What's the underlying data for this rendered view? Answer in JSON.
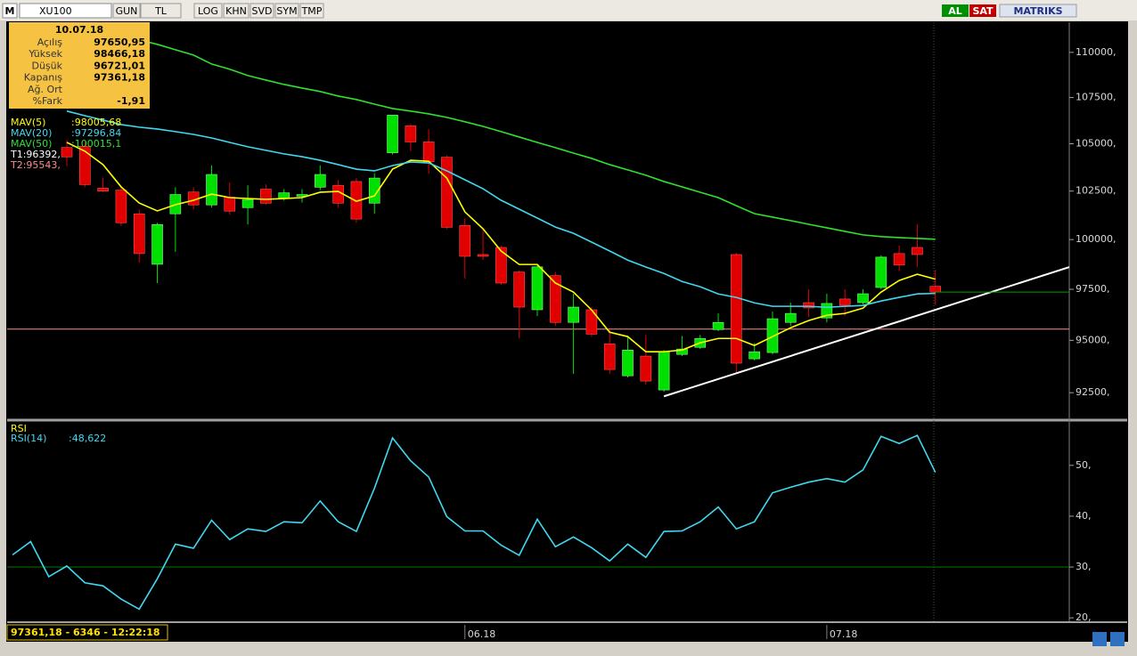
{
  "toolbar": {
    "logo": "M",
    "symbol": "XU100",
    "buttons": [
      "GUN",
      "TL",
      "LOG",
      "KHN",
      "SVD",
      "SYM",
      "TMP"
    ],
    "buy": "AL",
    "sell": "SAT",
    "brand": "MATRIKS"
  },
  "info": {
    "date": "10.07.18",
    "rows": [
      [
        "Açılış",
        "97650,95"
      ],
      [
        "Yüksek",
        "98466,18"
      ],
      [
        "Düşük",
        "96721,01"
      ],
      [
        "Kapanış",
        "97361,18"
      ],
      [
        "Ağ. Ort"
      ],
      [
        "%Fark",
        "-1,91"
      ]
    ]
  },
  "status": "97361,18 - 6346 - 12:22:18",
  "chart_data": [
    {
      "type": "candlestick",
      "log_scale": true,
      "categories": [
        null,
        null,
        null,
        null,
        null,
        null,
        null,
        null,
        null,
        null,
        null,
        null,
        null,
        null,
        null,
        null,
        null,
        null,
        null,
        null,
        null,
        null,
        null,
        null,
        null,
        "06.18",
        null,
        null,
        null,
        null,
        null,
        null,
        null,
        null,
        null,
        null,
        null,
        null,
        null,
        null,
        null,
        null,
        null,
        null,
        null,
        "07.18",
        null,
        null,
        null,
        null,
        null,
        null
      ],
      "open": [
        null,
        null,
        null,
        104800,
        104860,
        102650,
        102550,
        101320,
        98750,
        101320,
        102450,
        101780,
        102180,
        101640,
        102600,
        102140,
        102230,
        102700,
        102800,
        103000,
        101870,
        104520,
        105960,
        105100,
        104280,
        100720,
        99240,
        99600,
        98360,
        96490,
        98180,
        95870,
        96490,
        94830,
        93300,
        94240,
        92630,
        94320,
        94660,
        95520,
        99240,
        94110,
        94410,
        95870,
        96840,
        96090,
        97020,
        96840,
        97590,
        99290,
        99600,
        97650.95
      ],
      "high": [
        null,
        null,
        null,
        105200,
        105100,
        103200,
        102700,
        101550,
        100860,
        102700,
        102700,
        103850,
        102950,
        102800,
        102850,
        102600,
        102600,
        103850,
        103080,
        103180,
        103430,
        106560,
        106060,
        105770,
        104380,
        101090,
        100490,
        99690,
        98450,
        98720,
        98360,
        97280,
        96620,
        95520,
        95170,
        95260,
        94530,
        95210,
        95260,
        96310,
        99330,
        94870,
        96400,
        96840,
        97500,
        97280,
        97500,
        97500,
        99200,
        99690,
        100770,
        98466.18
      ],
      "low": [
        null,
        null,
        null,
        103800,
        102700,
        102450,
        100700,
        98840,
        97810,
        99380,
        101550,
        101640,
        101280,
        100770,
        101780,
        102000,
        101900,
        102550,
        101640,
        100860,
        101320,
        104420,
        104620,
        103420,
        100540,
        98030,
        98970,
        97720,
        95090,
        96180,
        95700,
        93390,
        95170,
        93390,
        93220,
        92880,
        92540,
        94240,
        94580,
        95440,
        93470,
        94030,
        94320,
        95700,
        96130,
        95870,
        96180,
        96750,
        97500,
        98400,
        98620,
        96721.01
      ],
      "close": [
        null,
        null,
        null,
        104300,
        102840,
        102500,
        100860,
        99290,
        100770,
        102320,
        101780,
        103370,
        101460,
        102050,
        101870,
        102410,
        102320,
        103370,
        101870,
        101050,
        103180,
        106540,
        105100,
        104040,
        100630,
        99150,
        99150,
        97810,
        96620,
        98620,
        95870,
        96620,
        95300,
        93600,
        94530,
        93050,
        94450,
        94580,
        95090,
        95870,
        93900,
        94450,
        96050,
        96310,
        96580,
        96800,
        96710,
        97280,
        99110,
        98710,
        99240,
        97361.18
      ],
      "up_color": "#00e000",
      "down_color": "#e00000",
      "xlim": [
        -0.3,
        58.4
      ],
      "ylim": [
        91300,
        111700
      ],
      "yticks": [
        {
          "value": 92500,
          "label": "92500,"
        },
        {
          "value": 95000,
          "label": "95000,"
        },
        {
          "value": 97500,
          "label": "97500,"
        },
        {
          "value": 100000,
          "label": "100000,"
        },
        {
          "value": 102500,
          "label": "102500,"
        },
        {
          "value": 105000,
          "label": "105000,"
        },
        {
          "value": 107500,
          "label": "107500,"
        },
        {
          "value": 110000,
          "label": "110000,"
        }
      ],
      "series": [
        {
          "name": "MAV(5)",
          "color": "#ffff00",
          "value_label": ":98005,68",
          "values": [
            null,
            null,
            null,
            105070,
            104600,
            103890,
            102720,
            101880,
            101470,
            101790,
            102020,
            102340,
            102160,
            102110,
            102070,
            102110,
            102160,
            102440,
            102480,
            101970,
            102250,
            103650,
            104120,
            104070,
            103180,
            101420,
            100550,
            99420,
            98740,
            98740,
            97810,
            97360,
            96480,
            95390,
            95180,
            94450,
            94450,
            94530,
            94880,
            95090,
            95090,
            94750,
            95180,
            95610,
            95960,
            96220,
            96310,
            96570,
            97360,
            97940,
            98250,
            98005.68
          ]
        },
        {
          "name": "MAV(20)",
          "color": "#40d8f0",
          "value_label": ":97296,84",
          "values": [
            null,
            null,
            null,
            106760,
            106510,
            106270,
            106030,
            105890,
            105790,
            105650,
            105500,
            105310,
            105070,
            104840,
            104650,
            104460,
            104310,
            104120,
            103890,
            103650,
            103560,
            103840,
            104030,
            103980,
            103560,
            103090,
            102620,
            102020,
            101560,
            101100,
            100640,
            100320,
            99870,
            99420,
            98960,
            98610,
            98290,
            97890,
            97630,
            97270,
            97100,
            96830,
            96660,
            96660,
            96660,
            96610,
            96660,
            96700,
            96920,
            97100,
            97270,
            97296.84
          ]
        },
        {
          "name": "MAV(50)",
          "color": "#30e030",
          "value_label": ":100015,1",
          "values": [
            null,
            null,
            null,
            null,
            null,
            null,
            null,
            110700,
            110450,
            110150,
            109850,
            109350,
            109060,
            108710,
            108460,
            108220,
            108020,
            107830,
            107580,
            107390,
            107140,
            106900,
            106760,
            106610,
            106420,
            106180,
            105930,
            105650,
            105360,
            105070,
            104790,
            104500,
            104220,
            103890,
            103610,
            103330,
            103000,
            102720,
            102440,
            102160,
            101740,
            101330,
            101150,
            100970,
            100780,
            100600,
            100420,
            100240,
            100150,
            100100,
            100060,
            100015.1
          ]
        }
      ],
      "t1_label": "T1:96392,",
      "levels": [
        {
          "label": "T2:95543,",
          "value": 95543,
          "color": "#ff8c8c"
        }
      ],
      "last_price_color": "#00a000",
      "trendline": {
        "x": [
          36,
          58.4
        ],
        "values": [
          92330,
          98606
        ],
        "color": "#ffffff"
      }
    },
    {
      "type": "line",
      "title": "RSI",
      "series": [
        {
          "name": "RSI(14)",
          "color": "#40d8f0",
          "value_label": ":48,622",
          "values": [
            32.4,
            35.0,
            28.1,
            30.2,
            26.9,
            26.3,
            23.7,
            21.7,
            27.7,
            34.5,
            33.7,
            39.2,
            35.4,
            37.5,
            37.0,
            38.9,
            38.7,
            43.0,
            38.9,
            37.0,
            45.5,
            55.4,
            50.9,
            47.7,
            39.9,
            37.1,
            37.1,
            34.3,
            32.3,
            39.4,
            34.0,
            35.9,
            33.8,
            31.2,
            34.5,
            31.9,
            37.0,
            37.1,
            38.9,
            41.8,
            37.5,
            38.9,
            44.6,
            45.7,
            46.7,
            47.4,
            46.7,
            49.1,
            55.7,
            54.3,
            55.9,
            48.622
          ]
        }
      ],
      "xlim": [
        -0.3,
        58.4
      ],
      "ylim": [
        19.5,
        58.2
      ],
      "yticks": [
        {
          "value": 20,
          "label": "20,"
        },
        {
          "value": 30,
          "label": "30,"
        },
        {
          "value": 40,
          "label": "40,"
        },
        {
          "value": 50,
          "label": "50,"
        }
      ],
      "reference_line": {
        "value": 30,
        "color": "#007a00"
      }
    }
  ]
}
